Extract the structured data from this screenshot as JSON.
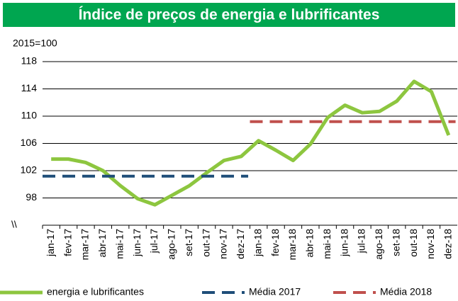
{
  "chart_data": {
    "type": "line",
    "title": "Índice de preços de energia e lubrificantes",
    "subtitle": "2015=100",
    "annotation": "\\\\",
    "categories": [
      "jan-17",
      "fev-17",
      "mar-17",
      "abr-17",
      "mai-17",
      "jun-17",
      "jul-17",
      "ago-17",
      "set-17",
      "out-17",
      "nov-17",
      "dez-17",
      "jan-18",
      "fev-18",
      "mar-18",
      "abr-18",
      "mai-18",
      "jun-18",
      "jul-18",
      "ago-18",
      "set-18",
      "out-18",
      "nov-18",
      "dez-18"
    ],
    "series": [
      {
        "name": "energia e lubrificantes",
        "color": "#8dc63f",
        "dash": false,
        "values": [
          103.7,
          103.7,
          103.2,
          102.0,
          99.8,
          97.9,
          97.0,
          98.4,
          99.8,
          101.7,
          103.5,
          104.1,
          106.4,
          105.0,
          103.5,
          105.9,
          109.8,
          111.6,
          110.5,
          110.7,
          112.2,
          115.1,
          113.6,
          107.2
        ]
      },
      {
        "name": "Média 2017",
        "color": "#1f4e79",
        "dash": true,
        "values": [
          101.2,
          101.2,
          101.2,
          101.2,
          101.2,
          101.2,
          101.2,
          101.2,
          101.2,
          101.2,
          101.2,
          101.2,
          null,
          null,
          null,
          null,
          null,
          null,
          null,
          null,
          null,
          null,
          null,
          null
        ]
      },
      {
        "name": "Média 2018",
        "color": "#c0504d",
        "dash": true,
        "values": [
          null,
          null,
          null,
          null,
          null,
          null,
          null,
          null,
          null,
          null,
          null,
          null,
          109.2,
          109.2,
          109.2,
          109.2,
          109.2,
          109.2,
          109.2,
          109.2,
          109.2,
          109.2,
          109.2,
          109.2
        ]
      }
    ],
    "ylim": [
      94,
      118
    ],
    "yticks": [
      98,
      102,
      106,
      110,
      114,
      118
    ],
    "grid": true
  }
}
